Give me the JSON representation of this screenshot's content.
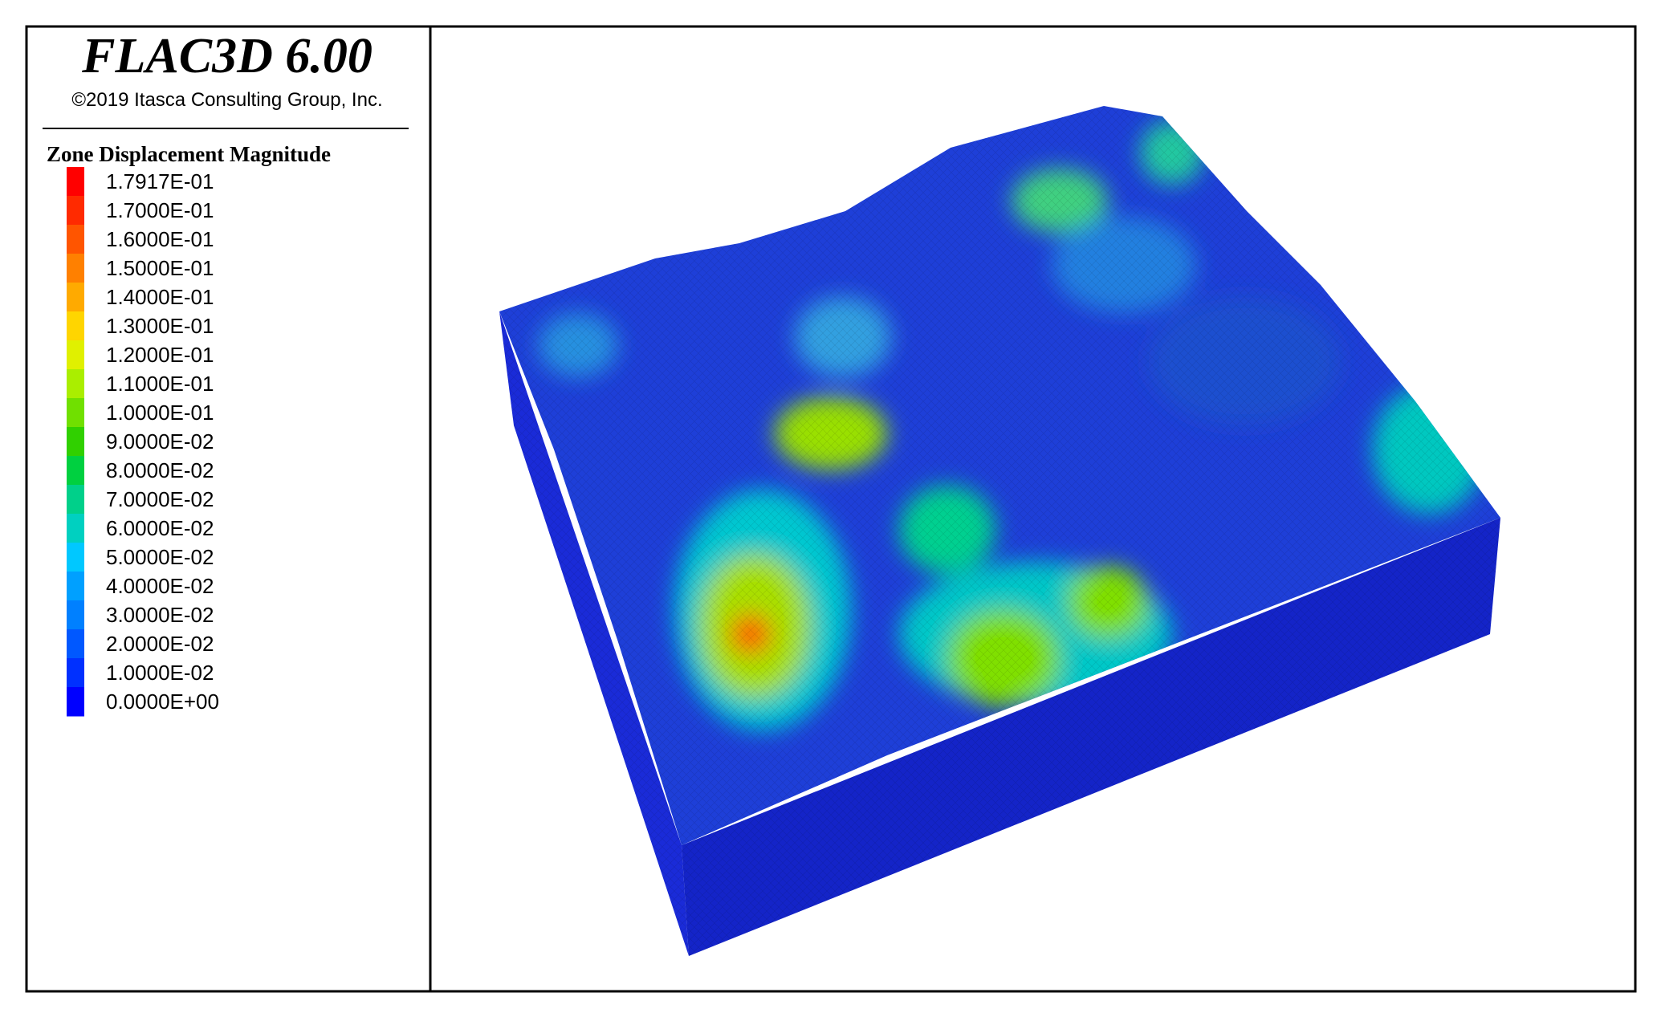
{
  "header": {
    "title": "FLAC3D 6.00",
    "copyright": "©2019 Itasca Consulting Group, Inc."
  },
  "legend": {
    "title": "Zone Displacement Magnitude",
    "entries": [
      {
        "label": "1.7917E-01",
        "color": "#ff0000"
      },
      {
        "label": "1.7000E-01",
        "color": "#ff2a00"
      },
      {
        "label": "1.6000E-01",
        "color": "#ff5500"
      },
      {
        "label": "1.5000E-01",
        "color": "#ff8000"
      },
      {
        "label": "1.4000E-01",
        "color": "#ffaa00"
      },
      {
        "label": "1.3000E-01",
        "color": "#ffd500"
      },
      {
        "label": "1.2000E-01",
        "color": "#e0f000"
      },
      {
        "label": "1.1000E-01",
        "color": "#aaee00"
      },
      {
        "label": "1.0000E-01",
        "color": "#70e000"
      },
      {
        "label": "9.0000E-02",
        "color": "#30d000"
      },
      {
        "label": "8.0000E-02",
        "color": "#00d040"
      },
      {
        "label": "7.0000E-02",
        "color": "#00d08a"
      },
      {
        "label": "6.0000E-02",
        "color": "#00d0c0"
      },
      {
        "label": "5.0000E-02",
        "color": "#00c8ff"
      },
      {
        "label": "4.0000E-02",
        "color": "#00a0ff"
      },
      {
        "label": "3.0000E-02",
        "color": "#0080ff"
      },
      {
        "label": "2.0000E-02",
        "color": "#0058ff"
      },
      {
        "label": "1.0000E-02",
        "color": "#0030ff"
      },
      {
        "label": "0.0000E+00",
        "color": "#0000ff"
      }
    ]
  }
}
